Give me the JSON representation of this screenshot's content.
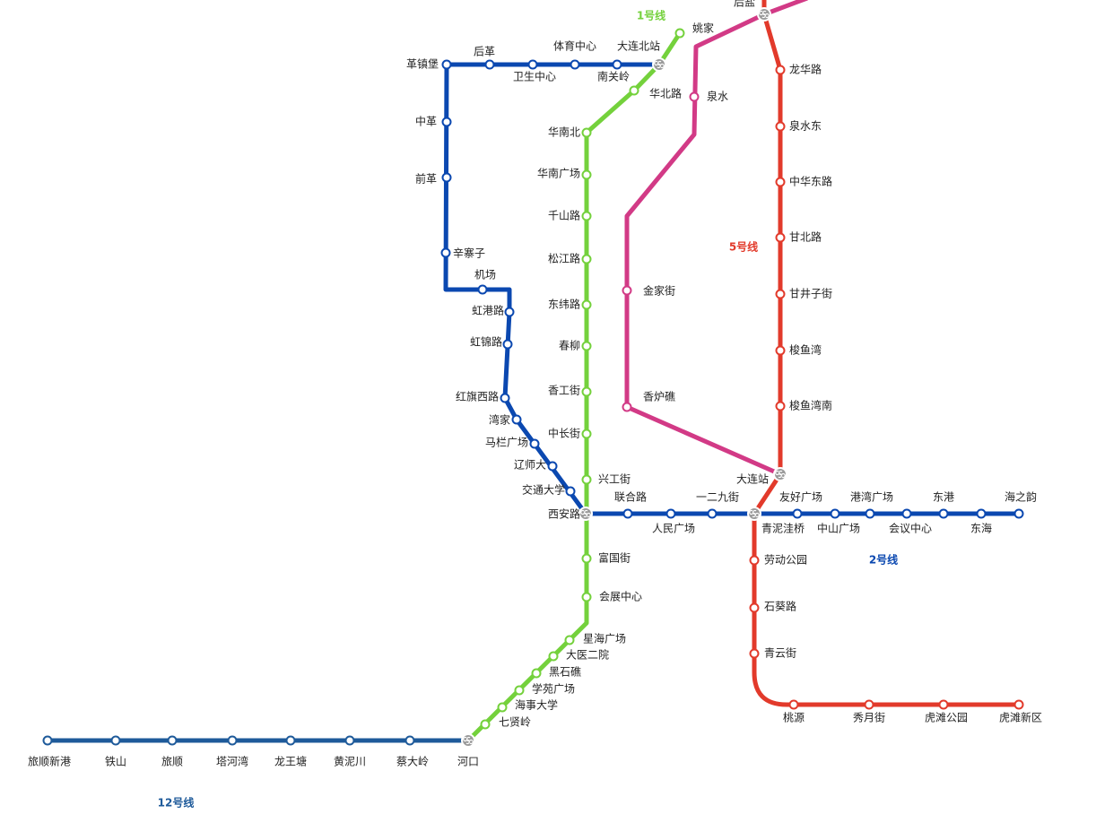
{
  "lines": [
    {
      "name": "1号线",
      "stations": [
        "姚家",
        "华北路",
        "华南北",
        "华南广场",
        "千山路",
        "松江路",
        "东纬路",
        "春柳",
        "香工街",
        "中长街",
        "兴工街",
        "富国街",
        "会展中心",
        "星海广场",
        "大医二院",
        "黑石礁",
        "学苑广场",
        "海事大学",
        "七贤岭"
      ]
    },
    {
      "name": "2号线",
      "stations": [
        "革镇堡",
        "后革",
        "卫生中心",
        "体育中心",
        "南关岭",
        "大连北站",
        "中革",
        "前革",
        "辛寨子",
        "机场",
        "虹港路",
        "虹锦路",
        "红旗西路",
        "湾家",
        "马栏广场",
        "辽师大",
        "交通大学",
        "西安路",
        "联合路",
        "人民广场",
        "一二九街",
        "青泥洼桥",
        "友好广场",
        "中山广场",
        "港湾广场",
        "会议中心",
        "东港",
        "东海",
        "海之韵"
      ]
    },
    {
      "name": "5号线",
      "stations": [
        "后盐",
        "龙华路",
        "泉水东",
        "中华东路",
        "甘北路",
        "甘井子街",
        "梭鱼湾",
        "梭鱼湾南",
        "大连站",
        "劳动公园",
        "石葵路",
        "青云街",
        "桃源",
        "秀月街",
        "虎滩公园",
        "虎滩新区"
      ]
    },
    {
      "name": "12号线",
      "stations": [
        "旅顺新港",
        "铁山",
        "旅顺",
        "塔河湾",
        "龙王塘",
        "黄泥川",
        "蔡大岭",
        "河口"
      ]
    },
    {
      "stations": [
        "泉水",
        "金家街",
        "香炉礁"
      ]
    }
  ]
}
